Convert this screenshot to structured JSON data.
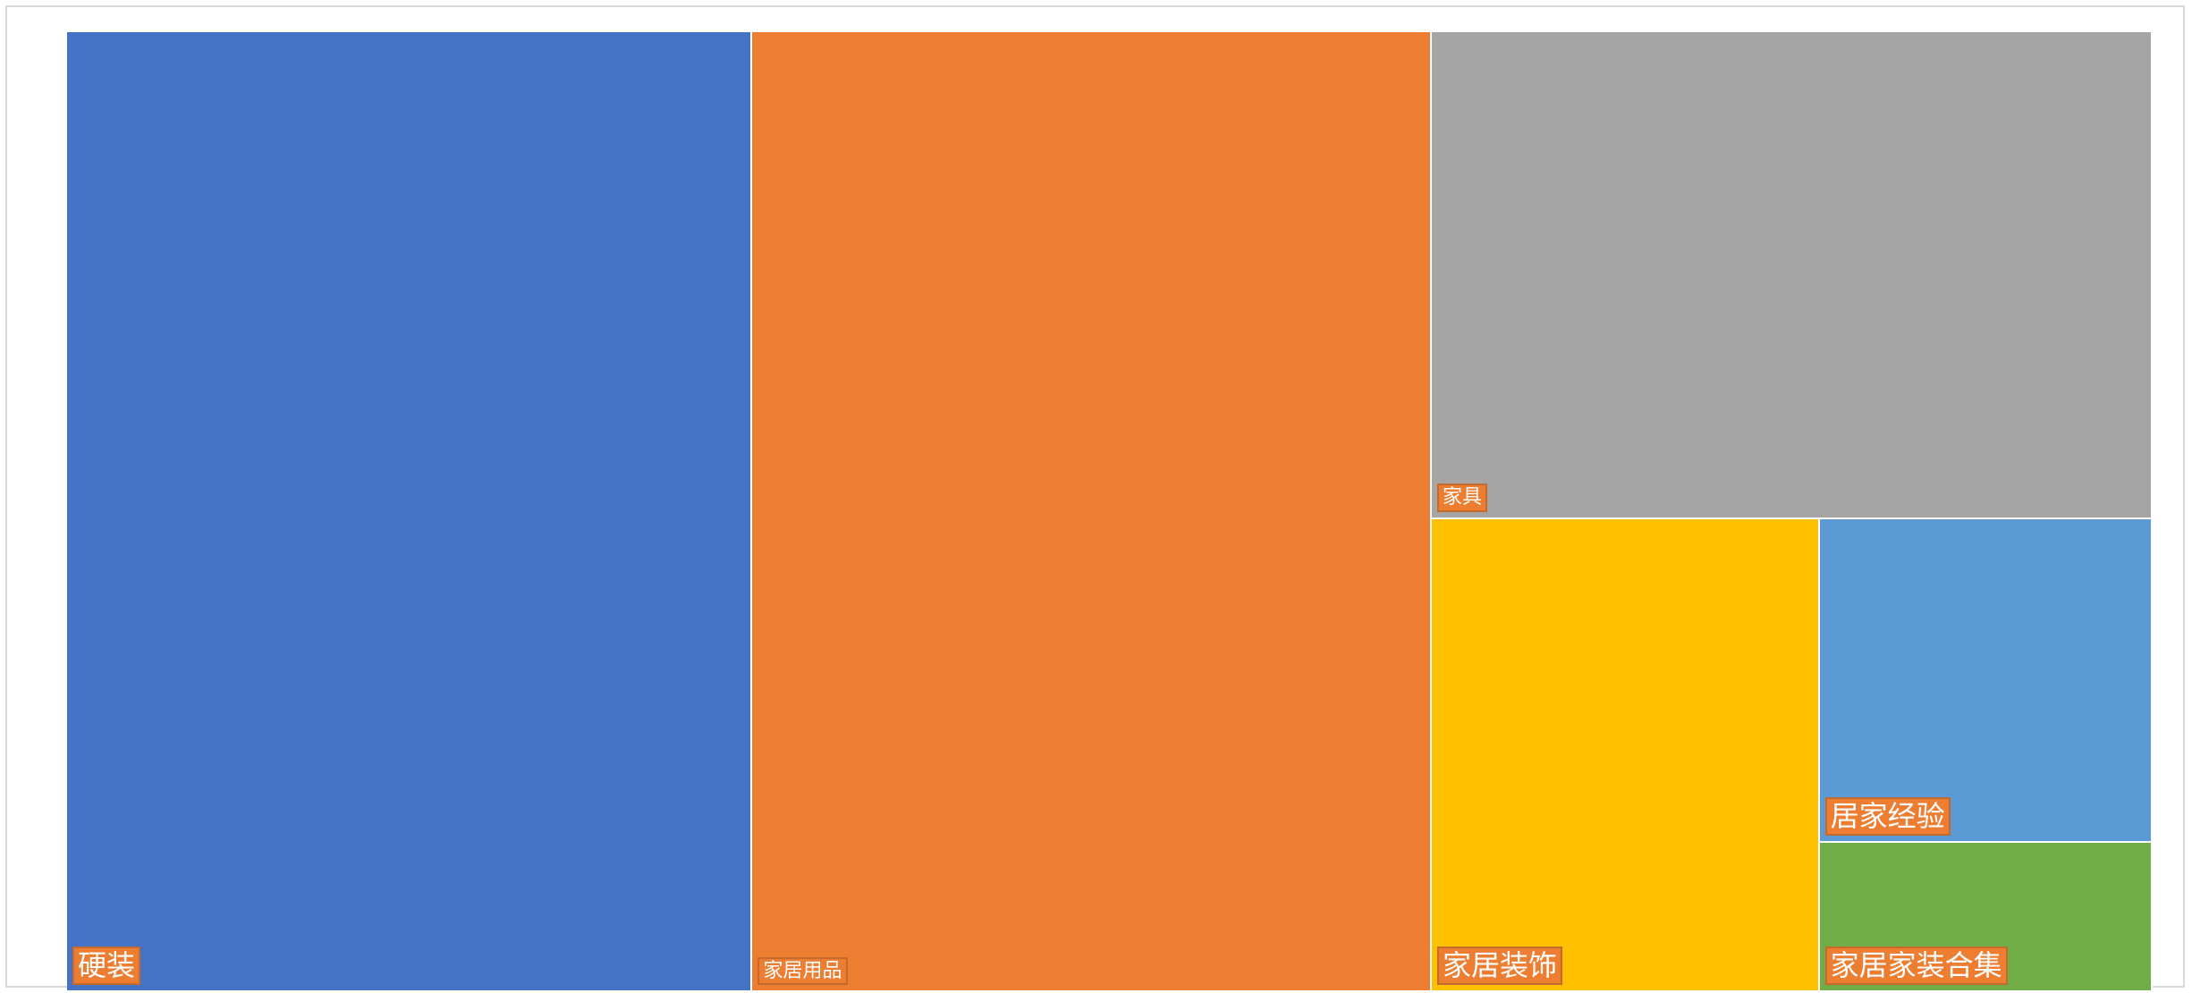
{
  "chart_data": {
    "type": "treemap",
    "title": "",
    "items": [
      {
        "label": "硬装",
        "value": 330,
        "color": "#4472c4"
      },
      {
        "label": "家居用品",
        "value": 327,
        "color": "#ed7d31"
      },
      {
        "label": "家具",
        "value": 176,
        "color": "#a5a5a5"
      },
      {
        "label": "家居装饰",
        "value": 92,
        "color": "#ffc000"
      },
      {
        "label": "居家经验",
        "value": 54,
        "color": "#5b9bd5"
      },
      {
        "label": "家居家装合集",
        "value": 25,
        "color": "#70ad47"
      }
    ]
  }
}
